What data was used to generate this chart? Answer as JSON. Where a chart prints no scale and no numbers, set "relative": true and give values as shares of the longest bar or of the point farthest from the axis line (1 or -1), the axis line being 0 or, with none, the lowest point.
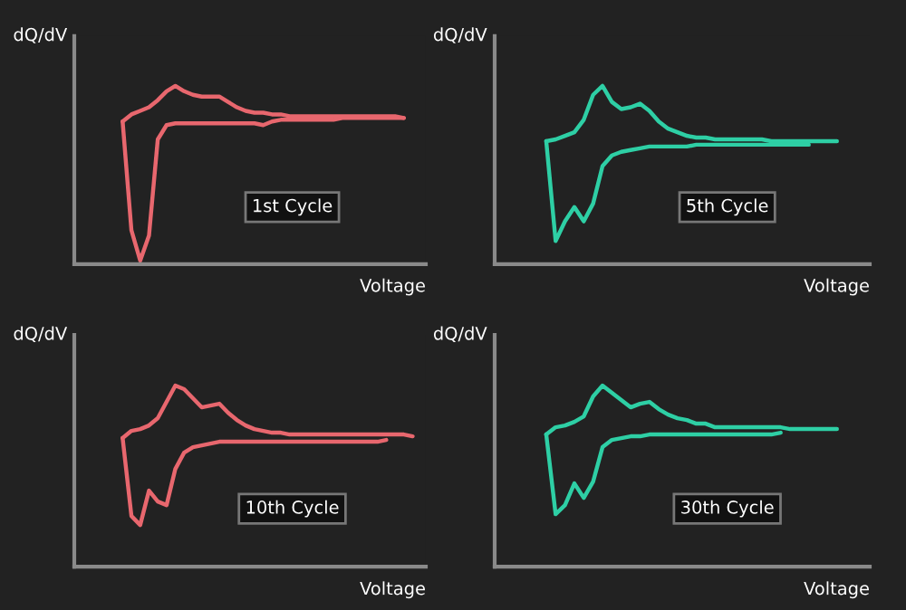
{
  "chart_data": [
    {
      "type": "line",
      "relative": true,
      "xlabel": "Voltage",
      "ylabel": "dQ/dV",
      "annotations": [
        "1st Cycle"
      ],
      "categories": [
        null,
        null,
        null,
        null,
        null,
        null,
        null,
        null,
        null,
        null,
        null,
        null,
        null,
        null,
        null,
        null,
        null,
        null,
        null,
        null,
        null,
        null,
        null,
        null,
        null,
        null,
        null,
        null,
        null,
        null,
        null,
        null,
        null,
        null,
        null,
        null,
        null,
        null,
        null,
        null
      ],
      "series": [
        {
          "color": "#e8676e",
          "values": [
            null,
            null,
            null,
            null,
            null,
            0.8,
            0.84,
            0.86,
            0.88,
            0.92,
            0.97,
            1.0,
            0.97,
            0.95,
            0.94,
            0.94,
            0.94,
            0.91,
            0.88,
            0.86,
            0.85,
            0.85,
            0.84,
            0.84,
            0.83,
            0.83,
            0.83,
            0.83,
            0.83,
            0.83,
            0.83,
            0.83,
            0.83,
            0.83,
            0.83,
            0.83,
            0.83,
            0.82,
            null,
            null
          ]
        },
        {
          "color": "#e8676e",
          "values": [
            null,
            null,
            null,
            null,
            null,
            0.8,
            0.19,
            0.02,
            0.16,
            0.7,
            0.78,
            0.79,
            0.79,
            0.79,
            0.79,
            0.79,
            0.79,
            0.79,
            0.79,
            0.79,
            0.79,
            0.78,
            0.8,
            0.81,
            0.81,
            0.81,
            0.81,
            0.81,
            0.81,
            0.81,
            0.82,
            0.82,
            0.82,
            0.82,
            0.82,
            0.82,
            0.82,
            0.82,
            null,
            null
          ]
        }
      ]
    },
    {
      "type": "line",
      "relative": true,
      "xlabel": "Voltage",
      "ylabel": "dQ/dV",
      "annotations": [
        "5th Cycle"
      ],
      "categories": [
        null,
        null,
        null,
        null,
        null,
        null,
        null,
        null,
        null,
        null,
        null,
        null,
        null,
        null,
        null,
        null,
        null,
        null,
        null,
        null,
        null,
        null,
        null,
        null,
        null,
        null,
        null,
        null,
        null,
        null,
        null,
        null,
        null,
        null,
        null,
        null,
        null,
        null,
        null,
        null
      ],
      "series": [
        {
          "color": "#2ecfa5",
          "values": [
            null,
            null,
            null,
            null,
            null,
            0.69,
            0.7,
            0.72,
            0.74,
            0.81,
            0.95,
            1.0,
            0.91,
            0.87,
            0.88,
            0.9,
            0.86,
            0.8,
            0.76,
            0.74,
            0.72,
            0.71,
            0.71,
            0.7,
            0.7,
            0.7,
            0.7,
            0.7,
            0.7,
            0.69,
            0.69,
            0.69,
            0.69,
            0.69,
            0.69,
            0.69,
            0.69,
            null,
            null,
            null
          ]
        },
        {
          "color": "#2ecfa5",
          "values": [
            null,
            null,
            null,
            null,
            null,
            0.69,
            0.13,
            0.24,
            0.32,
            0.24,
            0.34,
            0.55,
            0.61,
            0.63,
            0.64,
            0.65,
            0.66,
            0.66,
            0.66,
            0.66,
            0.66,
            0.67,
            0.67,
            0.67,
            0.67,
            0.67,
            0.67,
            0.67,
            0.67,
            0.67,
            0.67,
            0.67,
            0.67,
            0.67,
            null,
            null,
            null,
            null,
            null,
            null
          ]
        }
      ]
    },
    {
      "type": "line",
      "relative": true,
      "xlabel": "Voltage",
      "ylabel": "dQ/dV",
      "annotations": [
        "10th Cycle"
      ],
      "categories": [
        null,
        null,
        null,
        null,
        null,
        null,
        null,
        null,
        null,
        null,
        null,
        null,
        null,
        null,
        null,
        null,
        null,
        null,
        null,
        null,
        null,
        null,
        null,
        null,
        null,
        null,
        null,
        null,
        null,
        null,
        null,
        null,
        null,
        null,
        null,
        null,
        null,
        null,
        null,
        null
      ],
      "series": [
        {
          "color": "#e8676e",
          "values": [
            null,
            null,
            null,
            null,
            null,
            0.71,
            0.75,
            0.76,
            0.78,
            0.82,
            0.91,
            1.0,
            0.98,
            0.93,
            0.88,
            0.89,
            0.9,
            0.85,
            0.81,
            0.78,
            0.76,
            0.75,
            0.74,
            0.74,
            0.73,
            0.73,
            0.73,
            0.73,
            0.73,
            0.73,
            0.73,
            0.73,
            0.73,
            0.73,
            0.73,
            0.73,
            0.73,
            0.73,
            0.72,
            null
          ]
        },
        {
          "color": "#e8676e",
          "values": [
            null,
            null,
            null,
            null,
            null,
            0.71,
            0.28,
            0.23,
            0.42,
            0.36,
            0.34,
            0.54,
            0.63,
            0.66,
            0.67,
            0.68,
            0.69,
            0.69,
            0.69,
            0.69,
            0.69,
            0.69,
            0.69,
            0.69,
            0.69,
            0.69,
            0.69,
            0.69,
            0.69,
            0.69,
            0.69,
            0.69,
            0.69,
            0.69,
            0.69,
            0.7,
            null,
            null,
            null,
            null
          ]
        }
      ]
    },
    {
      "type": "line",
      "relative": true,
      "xlabel": "Voltage",
      "ylabel": "dQ/dV",
      "annotations": [
        "30th Cycle"
      ],
      "categories": [
        null,
        null,
        null,
        null,
        null,
        null,
        null,
        null,
        null,
        null,
        null,
        null,
        null,
        null,
        null,
        null,
        null,
        null,
        null,
        null,
        null,
        null,
        null,
        null,
        null,
        null,
        null,
        null,
        null,
        null,
        null,
        null,
        null,
        null,
        null,
        null,
        null,
        null,
        null,
        null
      ],
      "series": [
        {
          "color": "#2ecfa5",
          "values": [
            null,
            null,
            null,
            null,
            null,
            0.73,
            0.77,
            0.78,
            0.8,
            0.83,
            0.94,
            1.0,
            0.96,
            0.92,
            0.88,
            0.9,
            0.91,
            0.87,
            0.84,
            0.82,
            0.81,
            0.79,
            0.79,
            0.77,
            0.77,
            0.77,
            0.77,
            0.77,
            0.77,
            0.77,
            0.77,
            0.76,
            0.76,
            0.76,
            0.76,
            0.76,
            0.76,
            null,
            null,
            null
          ]
        },
        {
          "color": "#2ecfa5",
          "values": [
            null,
            null,
            null,
            null,
            null,
            0.73,
            0.29,
            0.34,
            0.46,
            0.38,
            0.47,
            0.66,
            0.7,
            0.71,
            0.72,
            0.72,
            0.73,
            0.73,
            0.73,
            0.73,
            0.73,
            0.73,
            0.73,
            0.73,
            0.73,
            0.73,
            0.73,
            0.73,
            0.73,
            0.73,
            0.74,
            null,
            null,
            null,
            null,
            null,
            null,
            null,
            null,
            null
          ]
        }
      ]
    }
  ]
}
